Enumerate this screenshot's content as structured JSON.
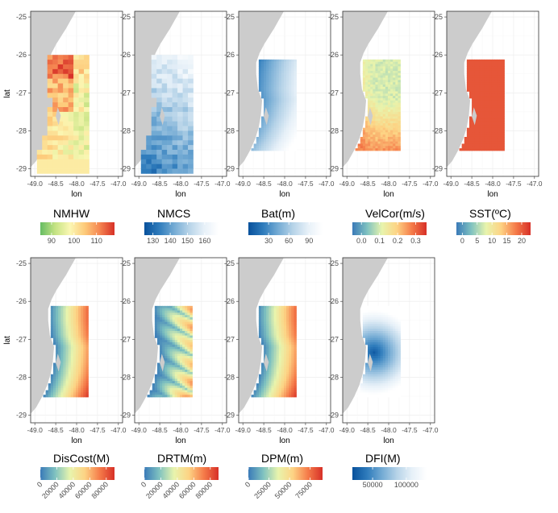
{
  "chart_data": [
    {
      "type": "heatmap",
      "id": "nmhw",
      "title": "NMHW",
      "xlabel": "lon",
      "ylabel": "lat",
      "legend_ticks": [
        "90",
        "100",
        "110"
      ],
      "scale": "rdylgn_rev",
      "scale_range": [
        85,
        118
      ],
      "pattern": "grid_mixed"
    },
    {
      "type": "heatmap",
      "id": "nmcs",
      "title": "NMCS",
      "xlabel": "lon",
      "ylabel": "",
      "legend_ticks": [
        "130",
        "140",
        "150",
        "160"
      ],
      "scale": "blues_rev",
      "scale_range": [
        125,
        168
      ],
      "pattern": "grid_blue"
    },
    {
      "type": "heatmap",
      "id": "bat",
      "title": "Bat(m)",
      "xlabel": "lon",
      "ylabel": "",
      "legend_ticks": [
        "30",
        "60",
        "90"
      ],
      "scale": "blues_rev",
      "scale_range": [
        0,
        110
      ],
      "pattern": "bathy"
    },
    {
      "type": "heatmap",
      "id": "velcor",
      "title": "VelCor(m/s)",
      "xlabel": "lon",
      "ylabel": "",
      "legend_ticks": [
        "0.0",
        "0.1",
        "0.2",
        "0.3"
      ],
      "scale": "rdylbu_rev",
      "scale_range": [
        -0.05,
        0.36
      ],
      "pattern": "vel"
    },
    {
      "type": "heatmap",
      "id": "sst",
      "title": "SST(ºC)",
      "xlabel": "lon",
      "ylabel": "",
      "legend_ticks": [
        "0",
        "5",
        "10",
        "15",
        "20"
      ],
      "scale": "rdylbu_rev",
      "scale_range": [
        -2,
        23
      ],
      "pattern": "flat_red"
    },
    {
      "type": "heatmap",
      "id": "discost",
      "title": "DisCost(M)",
      "xlabel": "lon",
      "ylabel": "lat",
      "legend_ticks": [
        "0",
        "20000",
        "40000",
        "60000",
        "80000"
      ],
      "scale": "rdylbu_rev",
      "scale_range": [
        0,
        90000
      ],
      "pattern": "coast_dist"
    },
    {
      "type": "heatmap",
      "id": "drtm",
      "title": "DRTM(m)",
      "xlabel": "lon",
      "ylabel": "",
      "legend_ticks": [
        "0",
        "20000",
        "40000",
        "60000",
        "80000"
      ],
      "scale": "rdylbu_rev",
      "scale_range": [
        0,
        90000
      ],
      "pattern": "route"
    },
    {
      "type": "heatmap",
      "id": "dpm",
      "title": "DPM(m)",
      "xlabel": "lon",
      "ylabel": "",
      "legend_ticks": [
        "0",
        "25000",
        "50000",
        "75000"
      ],
      "scale": "rdylbu_rev",
      "scale_range": [
        0,
        90000
      ],
      "pattern": "coast_dist"
    },
    {
      "type": "heatmap",
      "id": "dfi",
      "title": "DFI(M)",
      "xlabel": "lon",
      "ylabel": "",
      "legend_ticks": [
        "50000",
        "100000"
      ],
      "scale": "blues_rev",
      "scale_range": [
        20000,
        130000
      ],
      "pattern": "radial"
    }
  ],
  "axes": {
    "x_ticks": [
      "-49.0",
      "-48.5",
      "-48.0",
      "-47.5",
      "-47.0"
    ],
    "x_values": [
      -49.0,
      -48.5,
      -48.0,
      -47.5,
      -47.0
    ],
    "y_ticks": [
      "-25",
      "-26",
      "-27",
      "-28",
      "-29"
    ],
    "y_values": [
      -25,
      -26,
      -27,
      -28,
      -29
    ],
    "xlim": [
      -49.1,
      -46.9
    ],
    "ylim": [
      -29.2,
      -24.85
    ],
    "study_area": {
      "lon": [
        -48.8,
        -47.73
      ],
      "lat": [
        -28.48,
        -26.12
      ]
    },
    "study_area_grid": {
      "lon": [
        -48.95,
        -47.73
      ],
      "lat": [
        -29.1,
        -26.0
      ]
    }
  },
  "colors": {
    "land": "#cccccc",
    "grid": "#ebebeb",
    "panel_border": "#333333",
    "text": "#333333"
  }
}
